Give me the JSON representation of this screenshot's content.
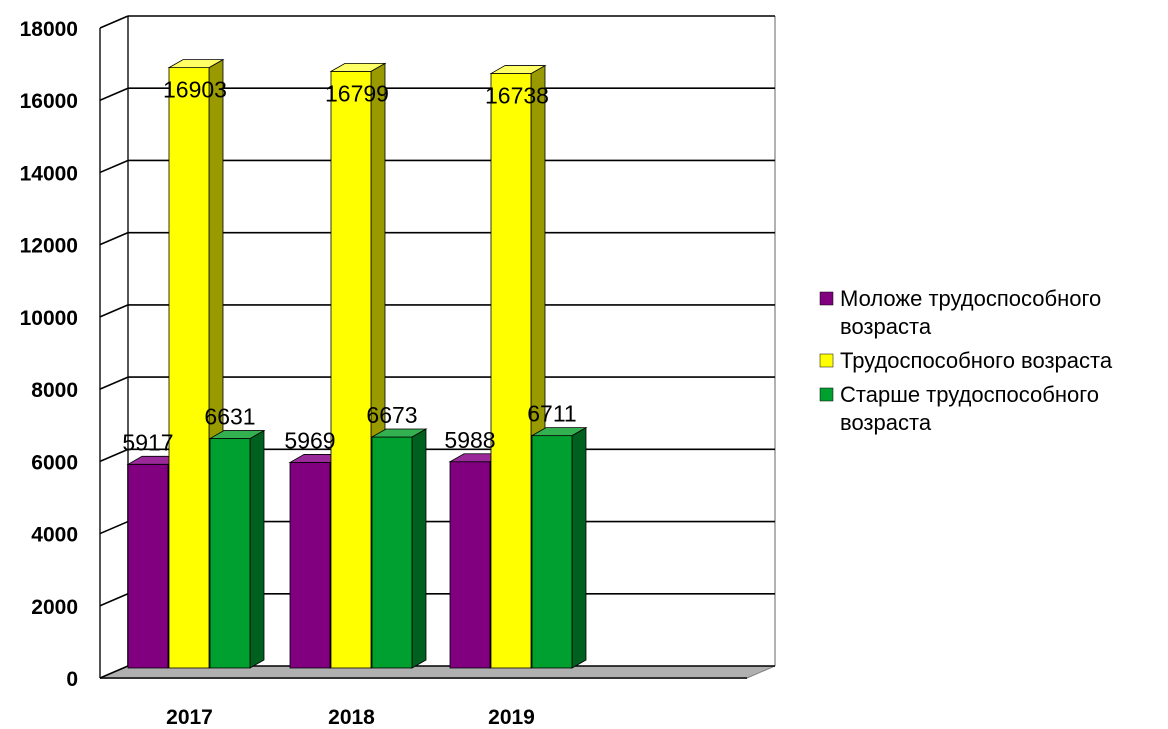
{
  "chart_data": {
    "type": "bar",
    "categories": [
      "2017",
      "2018",
      "2019"
    ],
    "series": [
      {
        "name_lines": [
          "Моложе трудоспособного",
          "возраста"
        ],
        "values": [
          5917,
          5969,
          5988
        ],
        "value_labels": [
          "5917",
          "5969",
          "5988"
        ],
        "color": "#800080",
        "side_color": "#4d004d",
        "top_color": "#9a2a9a"
      },
      {
        "name_lines": [
          "Трудоспособного возраста"
        ],
        "values": [
          16903,
          16799,
          16738
        ],
        "value_labels": [
          "16903",
          "16799",
          "16738"
        ],
        "color": "#ffff00",
        "side_color": "#999900",
        "top_color": "#ffff66"
      },
      {
        "name_lines": [
          "Старше трудоспособного",
          "возраста"
        ],
        "values": [
          6631,
          6673,
          6711
        ],
        "value_labels": [
          "6631",
          "6673",
          "6711"
        ],
        "color": "#00a030",
        "side_color": "#006020",
        "top_color": "#33b050"
      }
    ],
    "yticks": [
      "0",
      "2000",
      "4000",
      "6000",
      "8000",
      "10000",
      "12000",
      "14000",
      "16000",
      "18000"
    ],
    "ylim": [
      0,
      18000
    ],
    "grid": true,
    "legend_position": "right",
    "three_d": true
  }
}
